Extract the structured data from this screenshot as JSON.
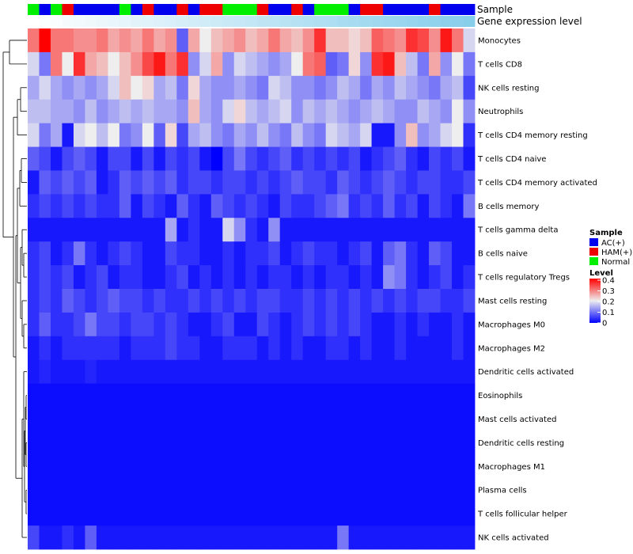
{
  "chart_data": {
    "type": "heatmap",
    "title": "",
    "annotation_tracks": [
      {
        "name": "Sample",
        "values": [
          "Normal",
          "AC(+)",
          "Normal",
          "HAM(+)",
          "AC(+)",
          "AC(+)",
          "AC(+)",
          "AC(+)",
          "Normal",
          "AC(+)",
          "HAM(+)",
          "AC(+)",
          "AC(+)",
          "HAM(+)",
          "AC(+)",
          "HAM(+)",
          "HAM(+)",
          "Normal",
          "Normal",
          "Normal",
          "HAM(+)",
          "AC(+)",
          "AC(+)",
          "HAM(+)",
          "AC(+)",
          "Normal",
          "Normal",
          "Normal",
          "AC(+)",
          "HAM(+)",
          "HAM(+)",
          "AC(+)",
          "AC(+)",
          "AC(+)",
          "AC(+)",
          "HAM(+)",
          "AC(+)",
          "AC(+)",
          "AC(+)"
        ]
      },
      {
        "name": "Gene expression level",
        "values": [
          0.0,
          0.03,
          0.05,
          0.08,
          0.1,
          0.13,
          0.16,
          0.18,
          0.21,
          0.24,
          0.26,
          0.29,
          0.32,
          0.34,
          0.37,
          0.39,
          0.42,
          0.45,
          0.47,
          0.5,
          0.53,
          0.55,
          0.58,
          0.61,
          0.63,
          0.66,
          0.68,
          0.71,
          0.74,
          0.76,
          0.79,
          0.82,
          0.84,
          0.87,
          0.89,
          0.92,
          0.95,
          0.97,
          1.0
        ]
      }
    ],
    "rows": [
      "Monocytes",
      "T cells CD8",
      "NK cells resting",
      "Neutrophils",
      "T cells CD4 memory resting",
      "T cells CD4 naive",
      "T cells CD4 memory activated",
      "B cells memory",
      "T cells gamma delta",
      "B cells naive",
      "T cells regulatory  Tregs",
      "Mast cells resting",
      "Macrophages M0",
      "Macrophages M2",
      "Dendritic cells activated",
      "Eosinophils",
      "Mast cells activated",
      "Dendritic cells resting",
      "Macrophages M1",
      "Plasma cells",
      "T cells follicular helper",
      "NK cells activated"
    ],
    "matrix": [
      [
        0.3,
        0.4,
        0.3,
        0.3,
        0.28,
        0.28,
        0.3,
        0.26,
        0.28,
        0.26,
        0.3,
        0.26,
        0.28,
        0.08,
        0.26,
        0.2,
        0.24,
        0.26,
        0.28,
        0.24,
        0.26,
        0.3,
        0.26,
        0.24,
        0.28,
        0.36,
        0.24,
        0.24,
        0.22,
        0.24,
        0.32,
        0.3,
        0.28,
        0.36,
        0.34,
        0.28,
        0.38,
        0.3,
        0.18
      ],
      [
        0.18,
        0.1,
        0.3,
        0.2,
        0.36,
        0.26,
        0.24,
        0.2,
        0.24,
        0.28,
        0.34,
        0.38,
        0.3,
        0.36,
        0.12,
        0.18,
        0.26,
        0.12,
        0.18,
        0.16,
        0.14,
        0.12,
        0.14,
        0.2,
        0.3,
        0.32,
        0.08,
        0.1,
        0.22,
        0.12,
        0.36,
        0.38,
        0.24,
        0.16,
        0.1,
        0.26,
        0.12,
        0.2,
        0.1
      ],
      [
        0.14,
        0.18,
        0.14,
        0.12,
        0.14,
        0.12,
        0.14,
        0.18,
        0.24,
        0.2,
        0.22,
        0.14,
        0.16,
        0.1,
        0.22,
        0.14,
        0.12,
        0.12,
        0.14,
        0.12,
        0.1,
        0.18,
        0.16,
        0.12,
        0.12,
        0.1,
        0.12,
        0.16,
        0.14,
        0.1,
        0.14,
        0.12,
        0.16,
        0.14,
        0.12,
        0.1,
        0.14,
        0.16,
        0.06
      ],
      [
        0.16,
        0.16,
        0.14,
        0.14,
        0.12,
        0.16,
        0.12,
        0.14,
        0.16,
        0.14,
        0.16,
        0.14,
        0.14,
        0.12,
        0.24,
        0.14,
        0.12,
        0.18,
        0.22,
        0.16,
        0.14,
        0.16,
        0.18,
        0.12,
        0.16,
        0.14,
        0.16,
        0.14,
        0.12,
        0.14,
        0.16,
        0.14,
        0.12,
        0.12,
        0.16,
        0.14,
        0.12,
        0.2,
        0.12
      ],
      [
        0.18,
        0.1,
        0.14,
        0.02,
        0.18,
        0.2,
        0.16,
        0.2,
        0.1,
        0.12,
        0.2,
        0.08,
        0.22,
        0.06,
        0.14,
        0.16,
        0.12,
        0.1,
        0.14,
        0.12,
        0.16,
        0.12,
        0.1,
        0.16,
        0.12,
        0.1,
        0.18,
        0.16,
        0.14,
        0.18,
        0.02,
        0.02,
        0.12,
        0.24,
        0.12,
        0.14,
        0.18,
        0.2,
        0.04
      ],
      [
        0.08,
        0.06,
        0.02,
        0.06,
        0.08,
        0.06,
        0.02,
        0.06,
        0.06,
        0.02,
        0.06,
        0.02,
        0.06,
        0.04,
        0.06,
        0.02,
        0.0,
        0.06,
        0.1,
        0.06,
        0.04,
        0.06,
        0.08,
        0.04,
        0.06,
        0.04,
        0.06,
        0.04,
        0.06,
        0.02,
        0.04,
        0.06,
        0.08,
        0.04,
        0.02,
        0.06,
        0.04,
        0.06,
        0.02
      ],
      [
        0.02,
        0.08,
        0.06,
        0.08,
        0.06,
        0.08,
        0.02,
        0.04,
        0.08,
        0.06,
        0.08,
        0.06,
        0.08,
        0.04,
        0.06,
        0.06,
        0.04,
        0.06,
        0.06,
        0.04,
        0.06,
        0.04,
        0.06,
        0.08,
        0.06,
        0.06,
        0.04,
        0.08,
        0.06,
        0.04,
        0.06,
        0.08,
        0.06,
        0.04,
        0.06,
        0.06,
        0.04,
        0.04,
        0.06
      ],
      [
        0.04,
        0.06,
        0.04,
        0.06,
        0.04,
        0.06,
        0.04,
        0.04,
        0.08,
        0.02,
        0.06,
        0.04,
        0.02,
        0.08,
        0.04,
        0.02,
        0.08,
        0.06,
        0.04,
        0.06,
        0.04,
        0.02,
        0.06,
        0.04,
        0.04,
        0.06,
        0.08,
        0.1,
        0.04,
        0.06,
        0.04,
        0.08,
        0.04,
        0.06,
        0.02,
        0.06,
        0.04,
        0.02,
        0.1
      ],
      [
        0.02,
        0.02,
        0.02,
        0.02,
        0.02,
        0.02,
        0.02,
        0.02,
        0.02,
        0.02,
        0.02,
        0.02,
        0.14,
        0.02,
        0.04,
        0.02,
        0.02,
        0.18,
        0.12,
        0.04,
        0.02,
        0.12,
        0.02,
        0.02,
        0.02,
        0.02,
        0.02,
        0.02,
        0.02,
        0.02,
        0.02,
        0.02,
        0.02,
        0.02,
        0.02,
        0.02,
        0.02,
        0.02,
        0.02
      ],
      [
        0.04,
        0.06,
        0.02,
        0.04,
        0.1,
        0.04,
        0.02,
        0.04,
        0.06,
        0.04,
        0.02,
        0.02,
        0.06,
        0.04,
        0.04,
        0.02,
        0.02,
        0.04,
        0.02,
        0.04,
        0.04,
        0.06,
        0.02,
        0.04,
        0.06,
        0.04,
        0.04,
        0.02,
        0.04,
        0.06,
        0.02,
        0.08,
        0.1,
        0.04,
        0.02,
        0.08,
        0.06,
        0.02,
        0.02
      ],
      [
        0.04,
        0.06,
        0.04,
        0.06,
        0.02,
        0.04,
        0.06,
        0.02,
        0.04,
        0.04,
        0.02,
        0.02,
        0.04,
        0.06,
        0.02,
        0.04,
        0.02,
        0.04,
        0.02,
        0.04,
        0.02,
        0.04,
        0.04,
        0.02,
        0.04,
        0.02,
        0.04,
        0.04,
        0.02,
        0.04,
        0.02,
        0.12,
        0.1,
        0.04,
        0.02,
        0.04,
        0.06,
        0.02,
        0.04
      ],
      [
        0.04,
        0.06,
        0.04,
        0.08,
        0.06,
        0.04,
        0.06,
        0.08,
        0.06,
        0.06,
        0.04,
        0.06,
        0.04,
        0.04,
        0.06,
        0.04,
        0.06,
        0.04,
        0.06,
        0.04,
        0.06,
        0.06,
        0.04,
        0.04,
        0.06,
        0.04,
        0.06,
        0.04,
        0.06,
        0.04,
        0.06,
        0.04,
        0.06,
        0.04,
        0.06,
        0.06,
        0.04,
        0.04,
        0.06
      ],
      [
        0.04,
        0.08,
        0.04,
        0.04,
        0.06,
        0.1,
        0.06,
        0.06,
        0.04,
        0.06,
        0.06,
        0.04,
        0.06,
        0.04,
        0.02,
        0.02,
        0.04,
        0.06,
        0.02,
        0.02,
        0.06,
        0.04,
        0.02,
        0.04,
        0.06,
        0.04,
        0.06,
        0.04,
        0.06,
        0.04,
        0.02,
        0.02,
        0.04,
        0.02,
        0.04,
        0.02,
        0.02,
        0.04,
        0.02
      ],
      [
        0.02,
        0.04,
        0.02,
        0.04,
        0.04,
        0.04,
        0.04,
        0.04,
        0.02,
        0.04,
        0.04,
        0.04,
        0.06,
        0.04,
        0.04,
        0.02,
        0.02,
        0.04,
        0.04,
        0.04,
        0.02,
        0.04,
        0.02,
        0.04,
        0.02,
        0.02,
        0.04,
        0.04,
        0.02,
        0.04,
        0.02,
        0.02,
        0.04,
        0.02,
        0.02,
        0.02,
        0.02,
        0.04,
        0.02
      ],
      [
        0.02,
        0.03,
        0.02,
        0.02,
        0.02,
        0.03,
        0.02,
        0.02,
        0.02,
        0.02,
        0.02,
        0.02,
        0.02,
        0.02,
        0.02,
        0.02,
        0.02,
        0.02,
        0.02,
        0.02,
        0.02,
        0.02,
        0.02,
        0.02,
        0.02,
        0.02,
        0.02,
        0.02,
        0.02,
        0.02,
        0.02,
        0.02,
        0.02,
        0.02,
        0.02,
        0.02,
        0.02,
        0.02,
        0.02
      ],
      [
        0.01,
        0.01,
        0.01,
        0.01,
        0.01,
        0.01,
        0.01,
        0.01,
        0.01,
        0.01,
        0.01,
        0.01,
        0.01,
        0.01,
        0.01,
        0.01,
        0.01,
        0.01,
        0.01,
        0.01,
        0.01,
        0.01,
        0.01,
        0.01,
        0.01,
        0.01,
        0.01,
        0.01,
        0.01,
        0.01,
        0.01,
        0.01,
        0.01,
        0.01,
        0.01,
        0.01,
        0.01,
        0.01,
        0.01
      ],
      [
        0.01,
        0.01,
        0.01,
        0.01,
        0.01,
        0.01,
        0.01,
        0.01,
        0.01,
        0.01,
        0.01,
        0.01,
        0.01,
        0.01,
        0.01,
        0.01,
        0.01,
        0.01,
        0.01,
        0.01,
        0.01,
        0.01,
        0.01,
        0.01,
        0.01,
        0.01,
        0.01,
        0.01,
        0.01,
        0.01,
        0.01,
        0.01,
        0.01,
        0.01,
        0.01,
        0.01,
        0.01,
        0.01,
        0.01
      ],
      [
        0.01,
        0.01,
        0.01,
        0.01,
        0.01,
        0.01,
        0.01,
        0.01,
        0.01,
        0.01,
        0.01,
        0.01,
        0.01,
        0.01,
        0.01,
        0.01,
        0.01,
        0.01,
        0.01,
        0.01,
        0.01,
        0.01,
        0.01,
        0.01,
        0.01,
        0.01,
        0.01,
        0.01,
        0.01,
        0.01,
        0.01,
        0.01,
        0.01,
        0.01,
        0.01,
        0.01,
        0.01,
        0.01,
        0.01
      ],
      [
        0.01,
        0.01,
        0.01,
        0.01,
        0.01,
        0.01,
        0.01,
        0.01,
        0.01,
        0.01,
        0.01,
        0.01,
        0.01,
        0.01,
        0.01,
        0.01,
        0.01,
        0.01,
        0.01,
        0.01,
        0.01,
        0.01,
        0.01,
        0.01,
        0.01,
        0.01,
        0.01,
        0.01,
        0.01,
        0.01,
        0.01,
        0.01,
        0.01,
        0.01,
        0.01,
        0.01,
        0.01,
        0.01,
        0.01
      ],
      [
        0.01,
        0.01,
        0.01,
        0.01,
        0.01,
        0.01,
        0.01,
        0.01,
        0.01,
        0.01,
        0.01,
        0.01,
        0.01,
        0.01,
        0.01,
        0.01,
        0.01,
        0.01,
        0.01,
        0.01,
        0.01,
        0.01,
        0.01,
        0.01,
        0.01,
        0.01,
        0.01,
        0.01,
        0.01,
        0.01,
        0.01,
        0.01,
        0.01,
        0.01,
        0.01,
        0.01,
        0.01,
        0.01,
        0.01
      ],
      [
        0.01,
        0.01,
        0.01,
        0.01,
        0.01,
        0.01,
        0.01,
        0.01,
        0.01,
        0.01,
        0.01,
        0.01,
        0.01,
        0.01,
        0.01,
        0.01,
        0.01,
        0.01,
        0.01,
        0.01,
        0.01,
        0.01,
        0.01,
        0.01,
        0.01,
        0.01,
        0.01,
        0.01,
        0.01,
        0.01,
        0.01,
        0.01,
        0.01,
        0.01,
        0.01,
        0.01,
        0.01,
        0.01,
        0.01
      ],
      [
        0.06,
        0.02,
        0.02,
        0.04,
        0.02,
        0.08,
        0.02,
        0.02,
        0.02,
        0.02,
        0.02,
        0.02,
        0.02,
        0.02,
        0.02,
        0.02,
        0.02,
        0.02,
        0.02,
        0.02,
        0.02,
        0.02,
        0.02,
        0.02,
        0.02,
        0.02,
        0.02,
        0.1,
        0.02,
        0.02,
        0.02,
        0.02,
        0.02,
        0.02,
        0.02,
        0.02,
        0.02,
        0.02,
        0.02
      ]
    ],
    "legend_sample": {
      "title": "Sample",
      "items": [
        {
          "label": "AC(+)",
          "color": "#0000EE"
        },
        {
          "label": "HAM(+)",
          "color": "#EE0000"
        },
        {
          "label": "Normal",
          "color": "#00EE00"
        }
      ]
    },
    "legend_level": {
      "title": "Level",
      "ticks": [
        "0.4",
        "0.3",
        "0.2",
        "0.1",
        "0"
      ],
      "range": [
        0,
        0.4
      ]
    },
    "colors": {
      "low": "#0000FF",
      "mid": "#EEEEEE",
      "high": "#FF0000",
      "expr_low": "#FFFFFF",
      "expr_high": "#87CEEB"
    }
  }
}
